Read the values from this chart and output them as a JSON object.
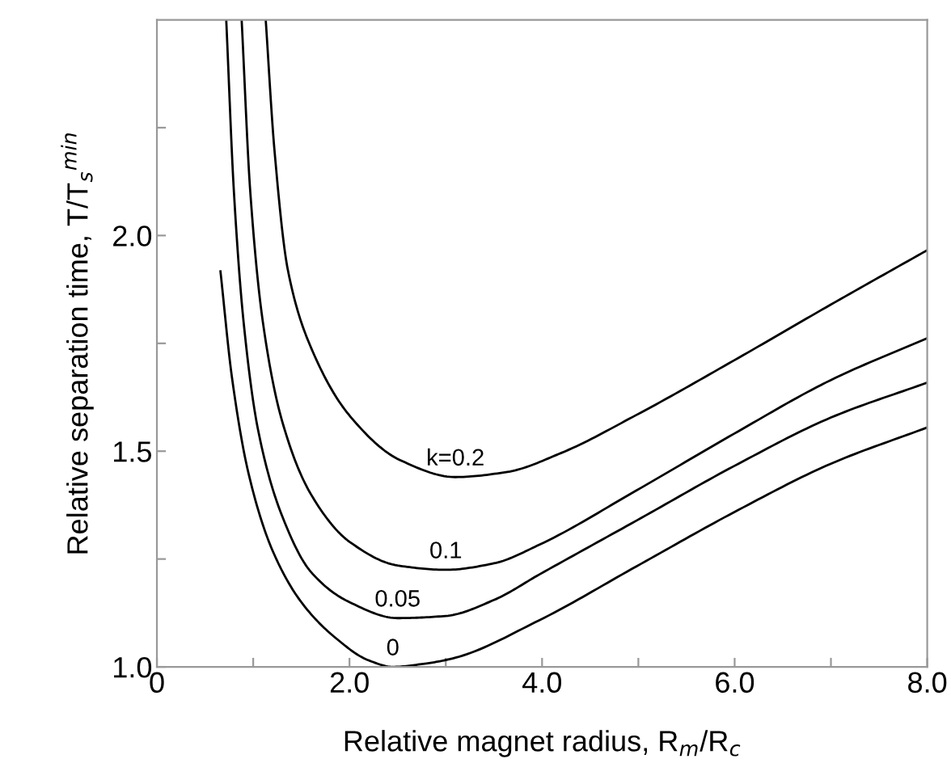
{
  "chart_data": {
    "type": "line",
    "xlabel": "Relative magnet radius, R$_{m}$/R$_{c}$",
    "ylabel": "Relative separation time, T/T$_{s}$$^{min}$",
    "xlim": [
      0,
      8
    ],
    "ylim": [
      1.0,
      2.5
    ],
    "xticks": [
      0,
      {
        "value": 1,
        "label": null
      },
      {
        "value": 2,
        "label": "2.0"
      },
      {
        "value": 3,
        "label": null
      },
      {
        "value": 4,
        "label": "4.0"
      },
      {
        "value": 5,
        "label": null
      },
      {
        "value": 6,
        "label": "6.0"
      },
      {
        "value": 7,
        "label": null
      },
      {
        "value": 8,
        "label": "8.0"
      }
    ],
    "yticks": [
      {
        "value": 1.0,
        "label": "1.0"
      },
      {
        "value": 1.25,
        "label": null
      },
      {
        "value": 1.5,
        "label": "1.5"
      },
      {
        "value": 1.75,
        "label": null
      },
      {
        "value": 2.0,
        "label": "2.0"
      },
      {
        "value": 2.25,
        "label": null
      }
    ],
    "grid": false,
    "marker": "none",
    "line_style": "solid",
    "series": [
      {
        "name": "0",
        "color": "#000000",
        "x": [
          0.66,
          0.78,
          0.95,
          1.2,
          1.5,
          1.84,
          2.2,
          2.45,
          2.8,
          3.08,
          3.97,
          4.98,
          5.99,
          7.0,
          8.0
        ],
        "values": [
          1.917,
          1.67,
          1.45,
          1.27,
          1.15,
          1.07,
          1.015,
          1.0,
          1.008,
          1.02,
          1.108,
          1.233,
          1.358,
          1.471,
          1.555
        ]
      },
      {
        "name": "0.05",
        "color": "#000000",
        "x": [
          0.72,
          0.8,
          0.9,
          1.05,
          1.3,
          1.6,
          2.0,
          2.5,
          3.0,
          3.5,
          3.97,
          4.98,
          5.99,
          7.0,
          8.0
        ],
        "values": [
          2.5,
          2.1,
          1.8,
          1.55,
          1.35,
          1.22,
          1.15,
          1.113,
          1.118,
          1.155,
          1.214,
          1.339,
          1.465,
          1.578,
          1.659
        ]
      },
      {
        "name": "0.1",
        "color": "#000000",
        "x": [
          0.88,
          0.97,
          1.1,
          1.3,
          1.6,
          2.0,
          2.5,
          3.0,
          3.5,
          3.97,
          4.98,
          5.99,
          7.0,
          8.0
        ],
        "values": [
          2.5,
          2.1,
          1.8,
          1.57,
          1.4,
          1.29,
          1.235,
          1.225,
          1.24,
          1.283,
          1.409,
          1.54,
          1.665,
          1.762
        ]
      },
      {
        "name": "k=0.2",
        "color": "#000000",
        "x": [
          1.13,
          1.22,
          1.36,
          1.62,
          2.01,
          2.52,
          3.1,
          3.64,
          4.2,
          4.98,
          5.99,
          7.0,
          8.0
        ],
        "values": [
          2.5,
          2.2,
          1.92,
          1.73,
          1.58,
          1.48,
          1.44,
          1.452,
          1.496,
          1.584,
          1.71,
          1.84,
          1.966
        ]
      }
    ]
  }
}
